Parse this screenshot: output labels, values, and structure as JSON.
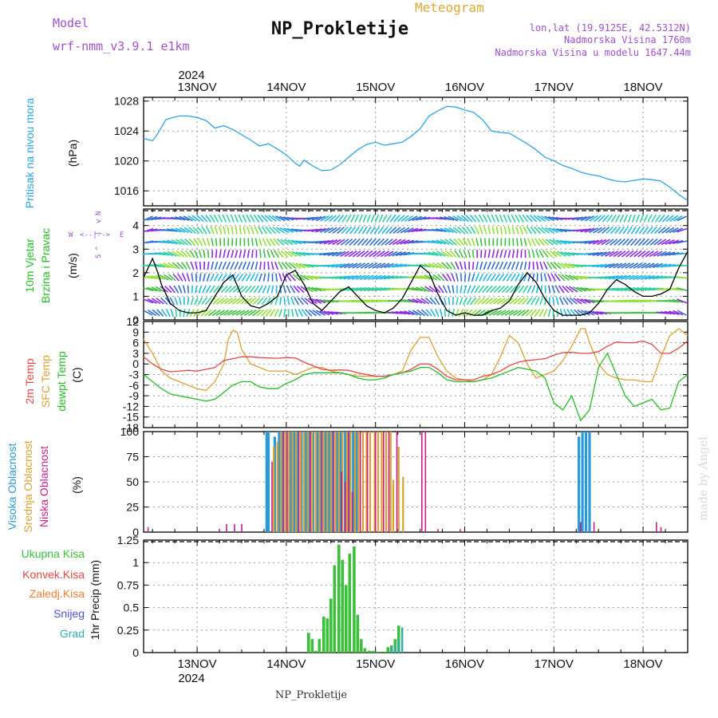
{
  "header": {
    "model_label": "Model",
    "model_name": "wrf-nmm_v3.9.1  e1km",
    "title": "NP_Prokletije",
    "subtitle": "Meteogram",
    "lonlat": "lon,lat (19.9125E, 42.5312N)",
    "elevation": "Nadmorska Visina 1760m",
    "model_elevation": "Nadmorska Visina u modelu 1647.44m",
    "footer": "NP_Prokletije",
    "watermark": "made by Angel",
    "year_top": "2024",
    "year_bottom": "2024"
  },
  "colors": {
    "pressure": "#29a6e6",
    "temp2m": "#e84545",
    "sfc": "#e0a030",
    "dewpoint": "#22c022",
    "high_cloud": "#2a9ad8",
    "mid_cloud": "#e0a030",
    "low_cloud": "#c81e8c",
    "total_precip": "#3cc03c",
    "conv_precip": "#e84545",
    "frozen": "#f08030",
    "snow": "#5050dd",
    "grad": "#30b0b0",
    "model": "#a050d0"
  },
  "chart_data": [
    {
      "type": "line",
      "id": "pressure",
      "ylabel_main": "Pritisak na nivou mora",
      "unit": "(hPa)",
      "xlim": [
        -0.6,
        5.5
      ],
      "ylim": [
        1014,
        1028.5
      ],
      "yticks": [
        1016,
        1020,
        1024,
        1028
      ],
      "x_days": [
        "13NOV",
        "14NOV",
        "15NOV",
        "16NOV",
        "17NOV",
        "18NOV"
      ],
      "series": [
        {
          "x": [
            -0.6,
            -0.5,
            -0.45,
            -0.4,
            -0.35,
            -0.3,
            -0.2,
            -0.1,
            0.0,
            0.1,
            0.2,
            0.3,
            0.4,
            0.5,
            0.6,
            0.7,
            0.8,
            0.9,
            1.0,
            1.1,
            1.15,
            1.2,
            1.3,
            1.4,
            1.5,
            1.6,
            1.7,
            1.8,
            1.9,
            2.0,
            2.1,
            2.2,
            2.3,
            2.4,
            2.5,
            2.6,
            2.7,
            2.8,
            2.9,
            3.0,
            3.1,
            3.2,
            3.3,
            3.4,
            3.5,
            3.6,
            3.7,
            3.8,
            3.9,
            4.0,
            4.1,
            4.2,
            4.3,
            4.4,
            4.5,
            4.6,
            4.7,
            4.8,
            4.9,
            5.0,
            5.1,
            5.2,
            5.3,
            5.4,
            5.5
          ],
          "y": [
            1023,
            1022.7,
            1023.5,
            1024.5,
            1025.5,
            1025.7,
            1026,
            1026,
            1025.8,
            1025.4,
            1024.4,
            1024.7,
            1024.2,
            1023.5,
            1022.8,
            1022,
            1022.3,
            1021.6,
            1020.8,
            1019.7,
            1019.3,
            1020.1,
            1019.3,
            1018.7,
            1018.8,
            1019.5,
            1020.5,
            1021.5,
            1022.2,
            1022.5,
            1022.1,
            1022.3,
            1022.5,
            1023.3,
            1024.3,
            1026,
            1026.7,
            1027.3,
            1027.2,
            1026.8,
            1026.5,
            1025.5,
            1024,
            1023.8,
            1023.7,
            1023,
            1022.3,
            1021.5,
            1020.5,
            1020,
            1019.4,
            1019,
            1018.5,
            1018.2,
            1018,
            1017.6,
            1017.3,
            1017.2,
            1017.4,
            1017.6,
            1017.5,
            1017.3,
            1016.5,
            1015.5,
            1014.7
          ]
        }
      ]
    },
    {
      "type": "line",
      "id": "wind",
      "ylabel_main": "10m Vjetar",
      "ylabel_sub": "Brzina i Pravac",
      "unit": "(m/s)",
      "direction_key": [
        "W",
        "<--|-->",
        "E",
        "S",
        "^",
        "|",
        "v",
        "N"
      ],
      "ylim": [
        0,
        4.7
      ],
      "yticks": [
        0,
        1,
        2,
        3,
        4
      ],
      "series": [
        {
          "name": "speed",
          "x": [
            -0.6,
            -0.5,
            -0.45,
            -0.4,
            -0.3,
            -0.2,
            -0.1,
            0.0,
            0.1,
            0.2,
            0.3,
            0.4,
            0.5,
            0.6,
            0.7,
            0.8,
            0.9,
            1.0,
            1.1,
            1.2,
            1.3,
            1.4,
            1.5,
            1.6,
            1.7,
            1.8,
            1.9,
            2.0,
            2.1,
            2.2,
            2.3,
            2.4,
            2.5,
            2.6,
            2.7,
            2.8,
            2.9,
            3.0,
            3.1,
            3.2,
            3.3,
            3.4,
            3.5,
            3.6,
            3.7,
            3.8,
            3.9,
            4.0,
            4.1,
            4.2,
            4.3,
            4.4,
            4.5,
            4.6,
            4.7,
            4.8,
            4.9,
            5.0,
            5.1,
            5.2,
            5.3,
            5.4,
            5.5
          ],
          "y": [
            1.8,
            2.6,
            2.1,
            1.5,
            0.7,
            0.4,
            0.3,
            0.3,
            0.4,
            1.0,
            1.6,
            1.9,
            1.0,
            0.6,
            0.5,
            0.7,
            1.0,
            1.9,
            2.1,
            1.5,
            0.7,
            0.4,
            0.8,
            1.2,
            1.4,
            1.0,
            0.6,
            0.4,
            0.3,
            0.5,
            0.9,
            1.6,
            2.3,
            2.0,
            1.1,
            0.4,
            0.2,
            0.3,
            0.2,
            0.2,
            0.4,
            0.5,
            0.8,
            1.5,
            2.0,
            1.6,
            0.9,
            0.4,
            0.2,
            0.2,
            0.2,
            0.3,
            0.7,
            1.3,
            1.7,
            1.5,
            1.2,
            1.0,
            1.0,
            1.1,
            1.3,
            2.2,
            2.9
          ]
        }
      ]
    },
    {
      "type": "line",
      "id": "temperature",
      "ylabel_a": "2m Temp",
      "ylabel_b": "SFC Temp",
      "ylabel_c": "dewpt Temp",
      "unit": "(C)",
      "ylim": [
        -18,
        12
      ],
      "yticks": [
        -18,
        -15,
        -12,
        -9,
        -6,
        -3,
        0,
        3,
        6,
        9,
        12
      ],
      "series": [
        {
          "name": "2m",
          "x": [
            -0.6,
            -0.5,
            -0.4,
            -0.3,
            -0.2,
            -0.1,
            0.0,
            0.1,
            0.2,
            0.3,
            0.4,
            0.5,
            0.6,
            0.7,
            0.8,
            0.9,
            1.0,
            1.1,
            1.2,
            1.3,
            1.4,
            1.5,
            1.6,
            1.7,
            1.8,
            1.9,
            2.0,
            2.1,
            2.2,
            2.3,
            2.4,
            2.5,
            2.6,
            2.7,
            2.8,
            2.9,
            3.0,
            3.1,
            3.2,
            3.3,
            3.4,
            3.5,
            3.6,
            3.7,
            3.8,
            3.9,
            4.0,
            4.1,
            4.2,
            4.3,
            4.4,
            4.5,
            4.6,
            4.7,
            4.8,
            4.9,
            5.0,
            5.1,
            5.2,
            5.3,
            5.4,
            5.5
          ],
          "y": [
            2,
            0,
            -1.5,
            -2.2,
            -2,
            -1.8,
            -2,
            -1.5,
            -1,
            1,
            1.5,
            2,
            2,
            1.8,
            1.7,
            1.6,
            1.8,
            1.7,
            0.5,
            -0.5,
            -1.5,
            -1.8,
            -1.7,
            -1.8,
            -2.5,
            -3,
            -3.5,
            -3.5,
            -3,
            -2.5,
            -1.5,
            0,
            0,
            -1.5,
            -3.5,
            -4.5,
            -4.5,
            -4.5,
            -3.5,
            -3,
            -2,
            -0.5,
            0.5,
            1,
            1.2,
            1.5,
            2.5,
            3.2,
            3.3,
            3,
            3,
            3.5,
            5,
            6.2,
            6,
            6,
            6.5,
            5.5,
            3,
            3,
            4.5,
            6.5
          ]
        },
        {
          "name": "sfc",
          "x": [
            -0.6,
            -0.5,
            -0.4,
            -0.3,
            -0.2,
            -0.1,
            0.0,
            0.1,
            0.2,
            0.3,
            0.35,
            0.4,
            0.45,
            0.5,
            0.6,
            0.7,
            0.8,
            0.9,
            1.0,
            1.1,
            1.2,
            1.3,
            1.4,
            1.5,
            1.6,
            1.7,
            1.8,
            1.9,
            2.0,
            2.1,
            2.2,
            2.3,
            2.4,
            2.5,
            2.6,
            2.7,
            2.8,
            2.9,
            3.0,
            3.1,
            3.2,
            3.3,
            3.4,
            3.5,
            3.6,
            3.7,
            3.8,
            3.9,
            4.0,
            4.1,
            4.2,
            4.3,
            4.35,
            4.4,
            4.5,
            4.6,
            4.7,
            4.8,
            4.9,
            5.0,
            5.1,
            5.2,
            5.3,
            5.4,
            5.5
          ],
          "y": [
            7,
            3,
            -2,
            -4,
            -5,
            -6,
            -7,
            -7.5,
            -5,
            0,
            7,
            9.5,
            9,
            4,
            0,
            -1,
            -2,
            -2,
            -2,
            -3,
            -2,
            -1,
            -1,
            -2,
            -2.5,
            -3,
            -3.5,
            -3.5,
            -3.5,
            -3.5,
            -3,
            -2,
            4,
            7.5,
            7.5,
            2,
            -2,
            -4,
            -4.5,
            -5,
            -4.5,
            -3,
            2,
            8,
            6,
            0,
            -4,
            -3,
            -2,
            1,
            5,
            10,
            10,
            6,
            0,
            -3,
            -4,
            -4.5,
            -4.5,
            -5,
            -5,
            2,
            8,
            10,
            8
          ]
        },
        {
          "name": "dewpt",
          "x": [
            -0.6,
            -0.5,
            -0.4,
            -0.3,
            -0.2,
            -0.1,
            0.0,
            0.1,
            0.2,
            0.3,
            0.4,
            0.5,
            0.6,
            0.7,
            0.8,
            0.9,
            1.0,
            1.1,
            1.2,
            1.3,
            1.4,
            1.5,
            1.6,
            1.7,
            1.8,
            1.9,
            2.0,
            2.1,
            2.2,
            2.3,
            2.4,
            2.5,
            2.6,
            2.7,
            2.8,
            2.9,
            3.0,
            3.1,
            3.2,
            3.3,
            3.4,
            3.5,
            3.6,
            3.7,
            3.8,
            3.9,
            4.0,
            4.1,
            4.2,
            4.3,
            4.4,
            4.5,
            4.6,
            4.7,
            4.8,
            4.9,
            5.0,
            5.1,
            5.2,
            5.3,
            5.4,
            5.5
          ],
          "y": [
            -3,
            -5,
            -7,
            -8.5,
            -9,
            -9.5,
            -10,
            -10.5,
            -10,
            -8,
            -6,
            -5,
            -5,
            -6.5,
            -7,
            -7,
            -5.5,
            -4.5,
            -3,
            -2.5,
            -2.5,
            -2.5,
            -2.5,
            -3,
            -4,
            -4.5,
            -4.5,
            -4,
            -3,
            -2.5,
            -2,
            -1,
            -1,
            -2.5,
            -4.5,
            -5,
            -5,
            -5,
            -4.5,
            -4,
            -3,
            -2,
            -1,
            -1.5,
            -2,
            -4,
            -11,
            -13,
            -9,
            -16,
            -13,
            -1,
            3,
            -3,
            -9,
            -12,
            -11,
            -10,
            -13,
            -12.5,
            -5,
            -3
          ]
        }
      ]
    },
    {
      "type": "bar",
      "id": "clouds",
      "ylabel_a": "Visoka Oblacnost",
      "ylabel_b": "Srednja Oblacnost",
      "ylabel_c": "Niska Oblacnost",
      "unit": "(%)",
      "ylim": [
        0,
        100
      ],
      "yticks": [
        0,
        25,
        50,
        75,
        100
      ],
      "series": [
        {
          "name": "high",
          "x": [
            0.78,
            0.8,
            0.87,
            0.92,
            0.96,
            1.0,
            1.05,
            1.09,
            1.13,
            1.17,
            1.22,
            1.26,
            1.3,
            1.35,
            1.39,
            1.44,
            1.48,
            1.52,
            1.57,
            1.61,
            1.66,
            1.7,
            1.75,
            1.79,
            4.28,
            4.32,
            4.36,
            4.4
          ],
          "y": [
            100,
            100,
            95,
            100,
            100,
            100,
            100,
            100,
            100,
            100,
            100,
            100,
            100,
            100,
            100,
            100,
            100,
            100,
            100,
            100,
            100,
            100,
            100,
            100,
            95,
            100,
            100,
            100
          ]
        },
        {
          "name": "mid",
          "x": [
            0.86,
            0.9,
            0.94,
            0.99,
            1.03,
            1.07,
            1.11,
            1.16,
            1.2,
            1.24,
            1.29,
            1.33,
            1.37,
            1.42,
            1.46,
            1.5,
            1.55,
            1.59,
            1.63,
            1.68,
            1.72,
            1.77,
            1.81,
            1.86,
            1.9,
            1.94,
            1.99,
            2.03,
            2.07,
            2.12,
            2.17,
            2.2,
            2.26,
            2.31,
            2.37
          ],
          "y": [
            85,
            90,
            100,
            100,
            100,
            100,
            100,
            100,
            100,
            100,
            100,
            100,
            100,
            100,
            100,
            100,
            100,
            100,
            100,
            100,
            100,
            100,
            100,
            100,
            100,
            100,
            100,
            100,
            100,
            100,
            100,
            52,
            85,
            55,
            0
          ]
        },
        {
          "name": "low",
          "x": [
            -0.55,
            0.25,
            0.33,
            0.42,
            0.5,
            0.84,
            0.97,
            1.01,
            1.14,
            1.27,
            1.4,
            1.53,
            1.62,
            1.66,
            1.7,
            1.74,
            1.83,
            1.91,
            2.0,
            2.09,
            2.15,
            2.24,
            2.52,
            2.56,
            2.7,
            2.95,
            4.3,
            4.45,
            5.15,
            5.2
          ],
          "y": [
            5,
            3,
            8,
            8,
            8,
            70,
            100,
            100,
            100,
            100,
            100,
            100,
            60,
            50,
            100,
            40,
            100,
            100,
            100,
            100,
            100,
            100,
            100,
            100,
            3,
            3,
            10,
            10,
            10,
            5
          ]
        }
      ]
    },
    {
      "type": "bar",
      "id": "precip",
      "legend": [
        "Ukupna  Kisa",
        "Konvek.Kisa",
        "Zaledj.Kisa",
        "Snijeg",
        "Grad"
      ],
      "ylabel": "1hr Precip (mm)",
      "ylim": [
        0,
        1.25
      ],
      "yticks": [
        0,
        0.25,
        0.5,
        0.75,
        1,
        1.25
      ],
      "series": [
        {
          "name": "total",
          "x": [
            1.25,
            1.29,
            1.33,
            1.37,
            1.42,
            1.46,
            1.5,
            1.54,
            1.59,
            1.63,
            1.67,
            1.71,
            1.76,
            1.8,
            1.84,
            1.88,
            1.93,
            1.97,
            2.01,
            2.05,
            2.1,
            2.14,
            2.18,
            2.22,
            2.26
          ],
          "y": [
            0.22,
            0.15,
            0.02,
            0.15,
            0.4,
            0.38,
            0.6,
            0.97,
            1.2,
            1.03,
            0.75,
            1.1,
            1.18,
            0.42,
            0.15,
            0.05,
            0.02,
            0.02,
            0.01,
            0.01,
            0.01,
            0.06,
            0.08,
            0.15,
            0.3
          ]
        },
        {
          "name": "grad",
          "x": [
            2.18,
            2.22,
            2.26,
            2.3
          ],
          "y": [
            0.05,
            0.08,
            0.15,
            0.28
          ]
        }
      ]
    }
  ]
}
